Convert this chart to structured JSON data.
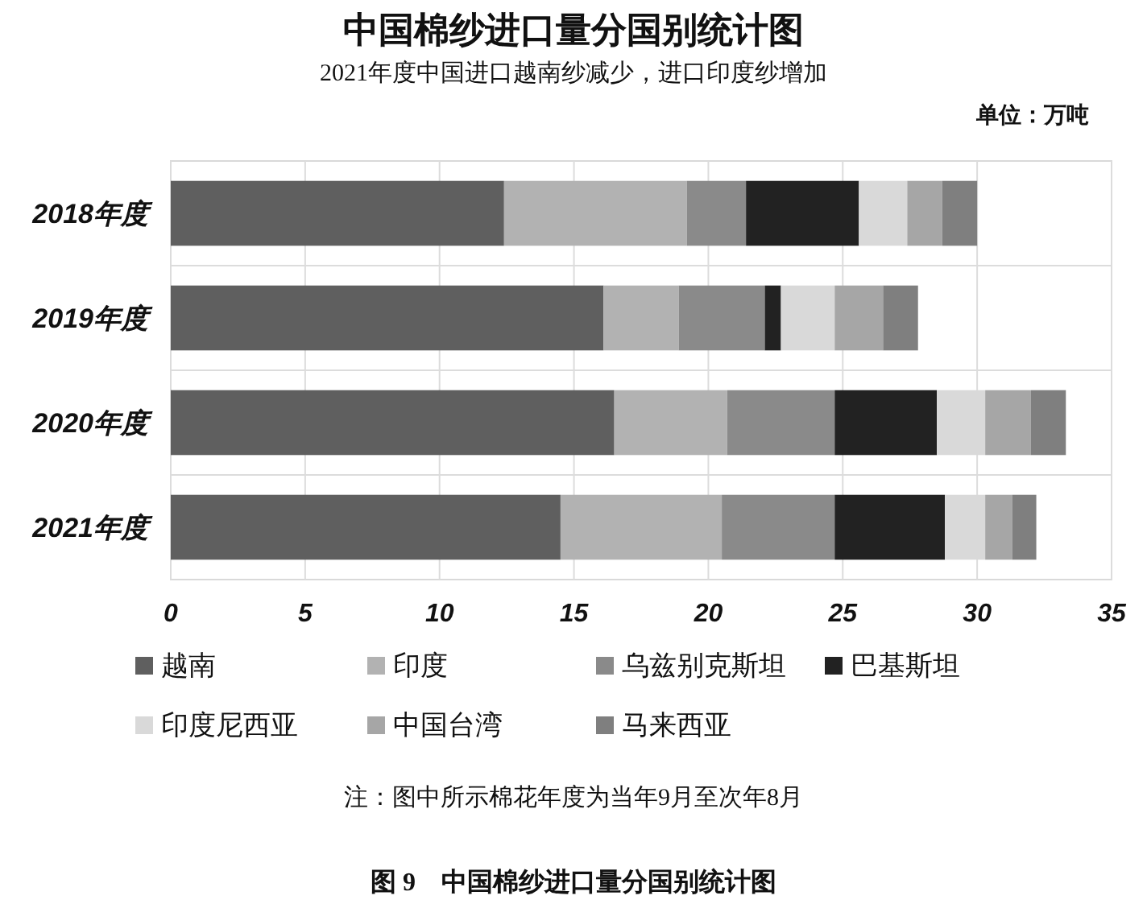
{
  "chart_data": {
    "type": "bar",
    "orientation": "horizontal",
    "stacked": true,
    "title": "中国棉纱进口量分国别统计图",
    "subtitle": "2021年度中国进口越南纱减少，进口印度纱增加",
    "annotations": [
      "单位：万吨",
      "注：图中所示棉花年度为当年9月至次年8月",
      "图 9　中国棉纱进口量分国别统计图"
    ],
    "categories": [
      "2018年度",
      "2019年度",
      "2020年度",
      "2021年度"
    ],
    "series": [
      {
        "name": "越南",
        "color": "#5f5f5f",
        "values": [
          12.4,
          16.1,
          16.5,
          14.5
        ]
      },
      {
        "name": "印度",
        "color": "#b2b2b2",
        "values": [
          6.8,
          2.8,
          4.2,
          6.0
        ]
      },
      {
        "name": "乌兹别克斯坦",
        "color": "#8a8a8a",
        "values": [
          2.2,
          3.2,
          4.0,
          4.2
        ]
      },
      {
        "name": "巴基斯坦",
        "color": "#222222",
        "values": [
          4.2,
          0.6,
          3.8,
          4.1
        ]
      },
      {
        "name": "印度尼西亚",
        "color": "#d9d9d9",
        "values": [
          1.8,
          2.0,
          1.8,
          1.5
        ]
      },
      {
        "name": "中国台湾",
        "color": "#a6a6a6",
        "values": [
          1.3,
          1.8,
          1.7,
          1.0
        ]
      },
      {
        "name": "马来西亚",
        "color": "#7f7f7f",
        "values": [
          1.3,
          1.3,
          1.3,
          0.9
        ]
      }
    ],
    "xlim": [
      0,
      35
    ],
    "xticks": [
      0,
      5,
      10,
      15,
      20,
      25,
      30,
      35
    ],
    "grid": true,
    "legend": "bottom"
  }
}
